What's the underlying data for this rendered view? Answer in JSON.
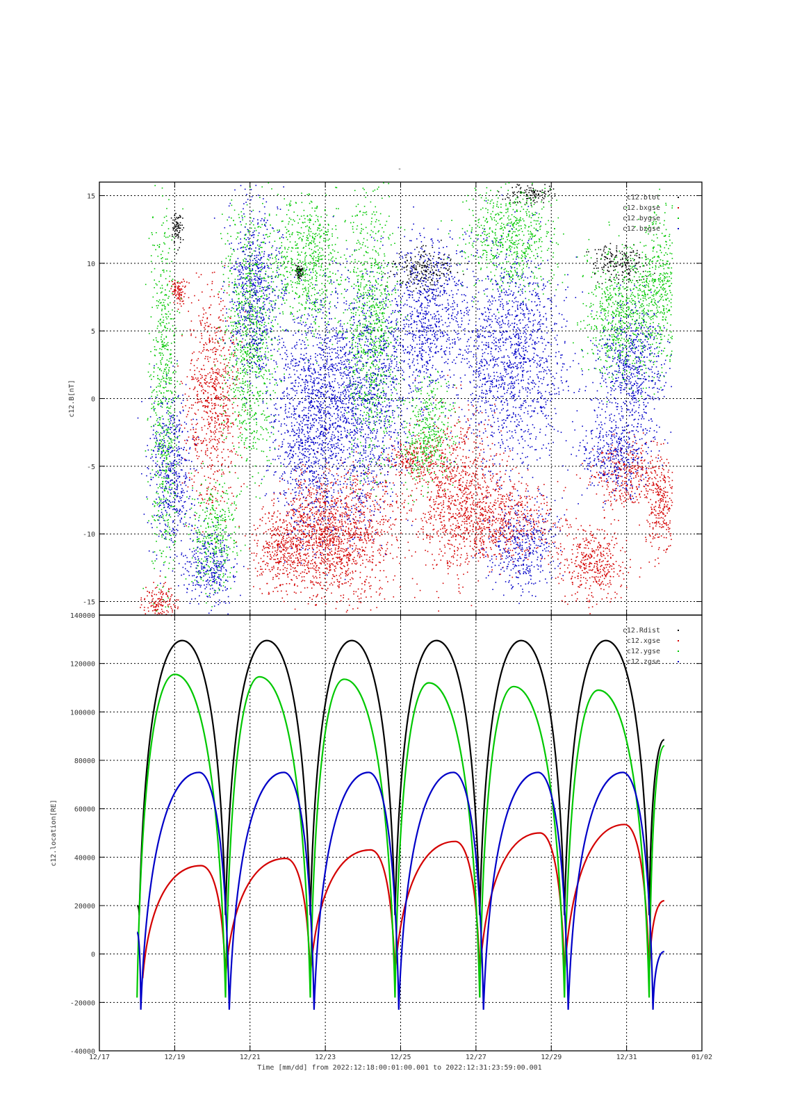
{
  "figure": {
    "title": "-",
    "xlabel": "Time [mm/dd]  from 2022:12:18:00:01:00.001  to  2022:12:31:23:59:00.001"
  },
  "chart_data": [
    {
      "type": "scatter",
      "ylabel": "c12.B[nT]",
      "ylim": [
        -16,
        16
      ],
      "yticks": [
        -15,
        -10,
        -5,
        0,
        5,
        10,
        15
      ],
      "grid": true,
      "legend_position": "top-right",
      "series": [
        {
          "name": "c12.btot",
          "color": "#000000",
          "clusters": [
            [
              19.05,
              12.5,
              1.2,
              0.1
            ],
            [
              22.3,
              9.4,
              0.4,
              0.08
            ],
            [
              25.6,
              9.5,
              1.6,
              0.7
            ],
            [
              28.4,
              15.2,
              0.8,
              0.5
            ],
            [
              30.8,
              10.0,
              1.5,
              0.6
            ]
          ]
        },
        {
          "name": "c12.bxgse",
          "color": "#d40000",
          "clusters": [
            [
              18.6,
              -15.0,
              1.5,
              0.4
            ],
            [
              19.1,
              8.0,
              1.0,
              0.2
            ],
            [
              20.0,
              0.0,
              8.0,
              0.6
            ],
            [
              21.8,
              -11.5,
              2.5,
              0.6
            ],
            [
              22.6,
              -10.0,
              4.0,
              1.0
            ],
            [
              23.6,
              -10.0,
              5.0,
              1.2
            ],
            [
              25.3,
              -4.5,
              1.5,
              0.6
            ],
            [
              26.5,
              -7.0,
              6.0,
              1.0
            ],
            [
              27.8,
              -9.0,
              3.0,
              1.1
            ],
            [
              30.1,
              -12.0,
              3.0,
              0.8
            ],
            [
              31.0,
              -5.5,
              2.5,
              0.8
            ],
            [
              31.9,
              -8.0,
              3.5,
              0.4
            ]
          ]
        },
        {
          "name": "c12.bygse",
          "color": "#00c800",
          "clusters": [
            [
              18.7,
              0.0,
              14.0,
              0.3
            ],
            [
              20.0,
              -10.0,
              4.0,
              0.5
            ],
            [
              21.0,
              5.0,
              10.0,
              0.6
            ],
            [
              22.5,
              10.0,
              5.0,
              0.8
            ],
            [
              24.2,
              5.0,
              10.0,
              0.6
            ],
            [
              25.7,
              -2.5,
              4.0,
              0.6
            ],
            [
              27.9,
              12.0,
              4.0,
              1.0
            ],
            [
              30.8,
              6.0,
              5.0,
              0.8
            ],
            [
              31.8,
              8.0,
              6.0,
              0.5
            ]
          ]
        },
        {
          "name": "c12.bzgse",
          "color": "#0000c8",
          "clusters": [
            [
              18.9,
              -5.0,
              6.0,
              0.5
            ],
            [
              19.9,
              -12.5,
              3.0,
              0.6
            ],
            [
              21.1,
              8.0,
              7.0,
              0.6
            ],
            [
              22.5,
              -2.0,
              8.0,
              0.8
            ],
            [
              23.8,
              0.0,
              9.0,
              1.2
            ],
            [
              25.7,
              6.0,
              6.0,
              0.8
            ],
            [
              27.9,
              3.0,
              8.0,
              1.2
            ],
            [
              28.2,
              -11.0,
              3.0,
              0.8
            ],
            [
              30.7,
              -4.0,
              3.0,
              0.8
            ],
            [
              31.1,
              2.0,
              5.0,
              0.8
            ]
          ]
        }
      ]
    },
    {
      "type": "line",
      "ylabel": "c12.location[RE]",
      "ylim": [
        -40000,
        140000
      ],
      "yticks": [
        -40000,
        -20000,
        0,
        20000,
        40000,
        60000,
        80000,
        100000,
        120000,
        140000
      ],
      "xlim": [
        "12/17",
        "01/02"
      ],
      "xticks": [
        "12/17",
        "12/19",
        "12/21",
        "12/23",
        "12/25",
        "12/27",
        "12/29",
        "12/31",
        "01/02"
      ],
      "grid": true,
      "legend_position": "top-right",
      "period_days": 2.25,
      "series": [
        {
          "name": "c12.Rdist",
          "color": "#000000",
          "start": "12/18",
          "end": "01/01",
          "orbits": [
            [
              18.0,
              20000,
              18.06,
              16000,
              19.2,
              129500,
              20.35,
              16000
            ],
            [
              20.35,
              16000,
              21.45,
              129500,
              22.6,
              16000
            ],
            [
              22.6,
              16000,
              23.7,
              129500,
              24.85,
              16000
            ],
            [
              24.85,
              16000,
              25.95,
              129500,
              27.1,
              16000
            ],
            [
              27.1,
              16000,
              28.2,
              129500,
              29.35,
              16000
            ],
            [
              29.35,
              16000,
              30.45,
              129500,
              31.6,
              16000
            ],
            [
              31.6,
              16000,
              32.0,
              88500
            ]
          ]
        },
        {
          "name": "c12.xgse",
          "color": "#d40000",
          "start": "12/18",
          "end": "01/01",
          "orbits": [
            [
              18.15,
              -10000,
              19.7,
              36500,
              20.35,
              -9500
            ],
            [
              20.35,
              -9500,
              21.95,
              39500,
              22.6,
              -9000
            ],
            [
              22.6,
              -9000,
              24.2,
              43000,
              24.85,
              -8500
            ],
            [
              24.85,
              -8500,
              26.45,
              46500,
              27.1,
              -8500
            ],
            [
              27.1,
              -8500,
              28.7,
              50000,
              29.35,
              -8500
            ],
            [
              29.35,
              -8500,
              30.95,
              53500,
              31.6,
              -8500
            ],
            [
              31.6,
              -8500,
              32.0,
              22000
            ]
          ]
        },
        {
          "name": "c12.ygse",
          "color": "#00c800",
          "start": "12/18",
          "end": "01/01",
          "orbits": [
            [
              18.0,
              -18000,
              19.0,
              115500,
              20.35,
              -18000
            ],
            [
              20.35,
              -18000,
              21.25,
              114500,
              22.6,
              -18000
            ],
            [
              22.6,
              -18000,
              23.5,
              113500,
              24.85,
              -18000
            ],
            [
              24.85,
              -18000,
              25.75,
              112000,
              27.1,
              -18000
            ],
            [
              27.1,
              -18000,
              28.0,
              110500,
              29.35,
              -18000
            ],
            [
              29.35,
              -18000,
              30.25,
              109000,
              31.6,
              -18000
            ],
            [
              31.6,
              -18000,
              32.0,
              86000
            ]
          ]
        },
        {
          "name": "c12.zgse",
          "color": "#0000c8",
          "start": "12/18",
          "end": "01/01",
          "orbits": [
            [
              18.0,
              9000,
              18.1,
              -23000,
              19.65,
              75000,
              20.45,
              -23000
            ],
            [
              20.45,
              -23000,
              21.9,
              75000,
              22.7,
              -23000
            ],
            [
              22.7,
              -23000,
              24.15,
              75000,
              24.95,
              -23000
            ],
            [
              24.95,
              -23000,
              26.4,
              75000,
              27.2,
              -23000
            ],
            [
              27.2,
              -23000,
              28.65,
              75000,
              29.45,
              -23000
            ],
            [
              29.45,
              -23000,
              30.9,
              75000,
              31.7,
              -23000
            ],
            [
              31.7,
              -23000,
              32.0,
              1000
            ]
          ]
        }
      ]
    }
  ]
}
